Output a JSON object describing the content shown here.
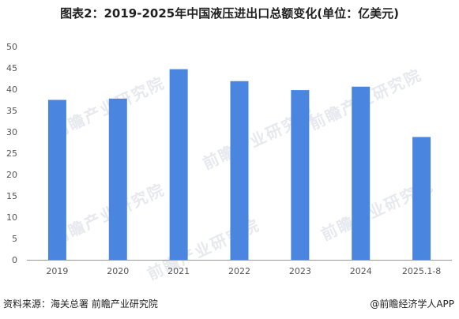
{
  "title": "图表2：2019-2025年中国液压进出口总额变化(单位：亿美元)",
  "footer": {
    "source": "资料来源：海关总署 前瞻产业研究院",
    "credit": "@前瞻经济学人APP"
  },
  "watermark": "前瞻产业研究院",
  "colors": {
    "bar": "#4a86e0",
    "axis": "#999999",
    "tick_text": "#555555"
  },
  "chart_data": {
    "type": "bar",
    "title": "图表2：2019-2025年中国液压进出口总额变化(单位：亿美元)",
    "categories": [
      "2019",
      "2020",
      "2021",
      "2022",
      "2023",
      "2024",
      "2025.1-8"
    ],
    "values": [
      37.5,
      37.8,
      44.7,
      41.9,
      39.8,
      40.6,
      28.8
    ],
    "ylim": [
      0,
      50
    ],
    "yticks": [
      0,
      5,
      10,
      15,
      20,
      25,
      30,
      35,
      40,
      45,
      50
    ],
    "xlabel": "",
    "ylabel": "",
    "grid": false
  }
}
